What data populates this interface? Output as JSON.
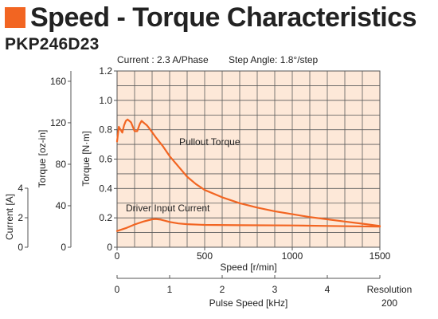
{
  "header": {
    "title": "Speed - Torque Characteristics",
    "model": "PKP246D23",
    "current_info": "Current : 2.3 A/Phase",
    "step_angle_info": "Step Angle: 1.8°/step",
    "accent_color": "#f26522",
    "title_icon": "orange-square-icon"
  },
  "chart_data": {
    "type": "line",
    "x_label": "Speed [r/min]",
    "x_range": [
      0,
      1500
    ],
    "x_ticks": [
      0,
      500,
      1000,
      1500
    ],
    "y_label": "Torque [N·m]",
    "y_range": [
      0,
      1.2
    ],
    "y_ticks": [
      "0",
      "0.2",
      "0.4",
      "0.6",
      "0.8",
      "1.0",
      "1.2"
    ],
    "y2_label": "Torque [oz-in]",
    "y2_ticks": [
      0,
      40,
      80,
      120,
      160
    ],
    "y3_label": "Current [A]",
    "y3_ticks": [
      0,
      2,
      4
    ],
    "grid": true,
    "plot_background": "#fde8d8",
    "line_color": "#f26522",
    "pulse_axis": {
      "label": "Pulse Speed [kHz]",
      "ticks": [
        0,
        1,
        2,
        3,
        4
      ],
      "resolution_label": "Resolution",
      "resolution_value": "200"
    },
    "series": [
      {
        "name": "Pullout Torque",
        "x": [
          0,
          10,
          20,
          30,
          40,
          50,
          60,
          70,
          80,
          90,
          100,
          115,
          130,
          140,
          150,
          160,
          170,
          190,
          220,
          260,
          300,
          350,
          400,
          450,
          500,
          600,
          700,
          800,
          900,
          1000,
          1100,
          1200,
          1300,
          1400,
          1500
        ],
        "y": [
          0.72,
          0.82,
          0.8,
          0.78,
          0.83,
          0.86,
          0.87,
          0.86,
          0.85,
          0.82,
          0.79,
          0.79,
          0.84,
          0.86,
          0.85,
          0.84,
          0.83,
          0.8,
          0.75,
          0.69,
          0.62,
          0.55,
          0.48,
          0.43,
          0.39,
          0.34,
          0.3,
          0.27,
          0.245,
          0.225,
          0.205,
          0.19,
          0.175,
          0.16,
          0.145
        ]
      },
      {
        "name": "Driver Input Current",
        "x": [
          0,
          50,
          100,
          150,
          200,
          220,
          250,
          300,
          350,
          400,
          500,
          700,
          1000,
          1200,
          1500
        ],
        "y": [
          0.11,
          0.13,
          0.155,
          0.175,
          0.19,
          0.192,
          0.188,
          0.172,
          0.162,
          0.157,
          0.152,
          0.15,
          0.148,
          0.145,
          0.14
        ]
      }
    ]
  }
}
